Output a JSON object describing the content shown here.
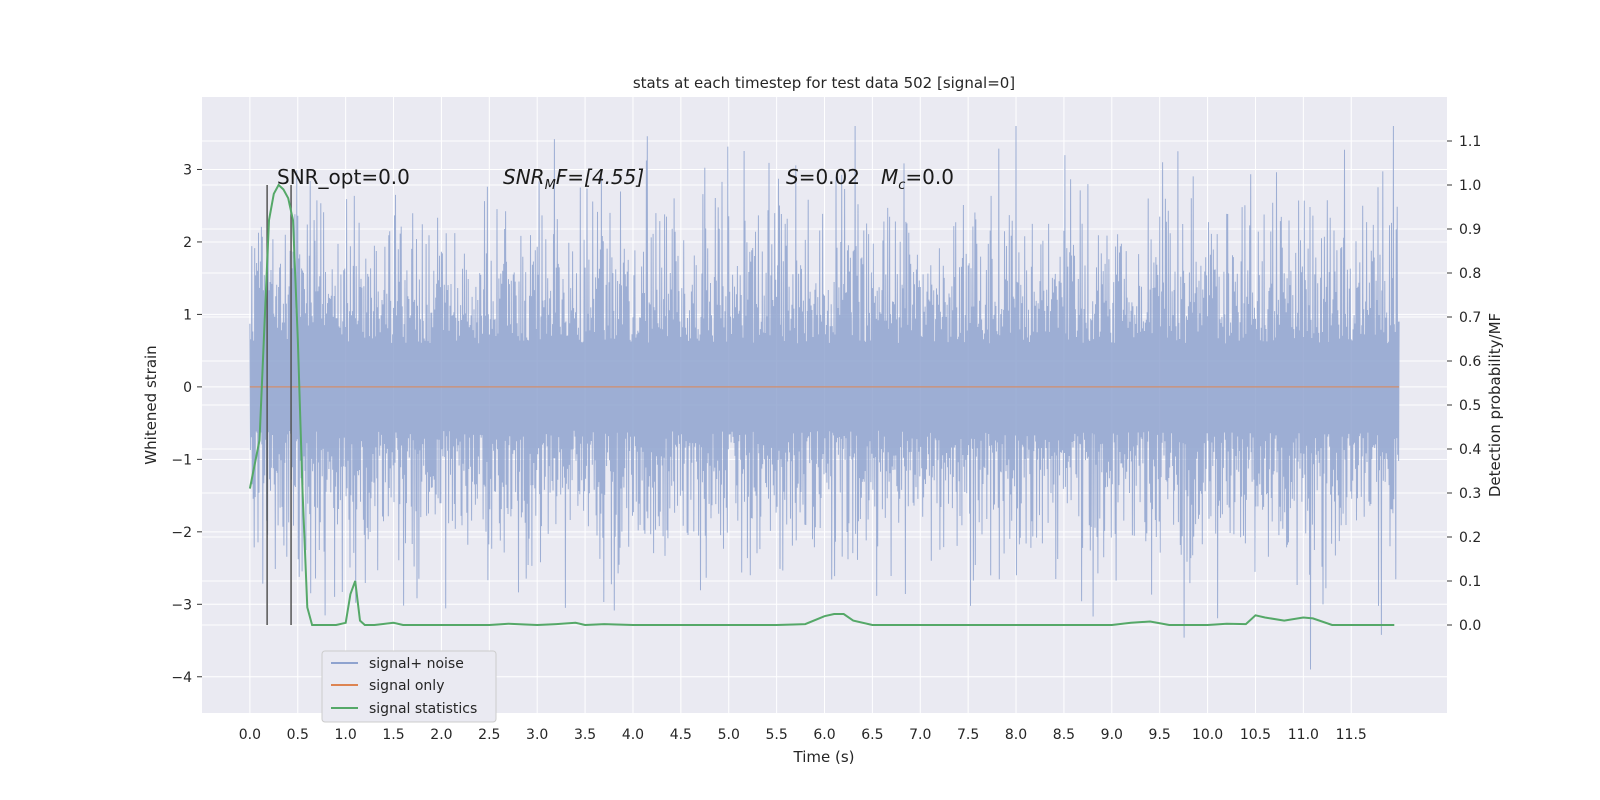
{
  "chart_data": {
    "type": "line",
    "title": "stats at each timestep for test data 502 [signal=0]",
    "xlabel": "Time (s)",
    "ylabel": "Whitened strain",
    "ylabel_right": "Detection probability/MF",
    "xlim": [
      -0.5,
      12.5
    ],
    "ylim": [
      -4.5,
      4.0
    ],
    "ylim_right": [
      -0.2,
      1.2
    ],
    "x_ticks": [
      0.0,
      0.5,
      1.0,
      1.5,
      2.0,
      2.5,
      3.0,
      3.5,
      4.0,
      4.5,
      5.0,
      5.5,
      6.0,
      6.5,
      7.0,
      7.5,
      8.0,
      8.5,
      9.0,
      9.5,
      10.0,
      10.5,
      11.0,
      11.5
    ],
    "x_tick_labels": [
      "0.0",
      "0.5",
      "1.0",
      "1.5",
      "2.0",
      "2.5",
      "3.0",
      "3.5",
      "4.0",
      "4.5",
      "5.0",
      "5.5",
      "6.0",
      "6.5",
      "7.0",
      "7.5",
      "8.0",
      "8.5",
      "9.0",
      "9.5",
      "10.0",
      "10.5",
      "11.0",
      "11.5"
    ],
    "y_ticks": [
      -4,
      -3,
      -2,
      -1,
      0,
      1,
      2,
      3
    ],
    "y_tick_labels": [
      "−4",
      "−3",
      "−2",
      "−1",
      "0",
      "1",
      "2",
      "3"
    ],
    "y_ticks_right": [
      0.0,
      0.1,
      0.2,
      0.3,
      0.4,
      0.5,
      0.6,
      0.7,
      0.8,
      0.9,
      1.0,
      1.1
    ],
    "y_tick_labels_right": [
      "0.0",
      "0.1",
      "0.2",
      "0.3",
      "0.4",
      "0.5",
      "0.6",
      "0.7",
      "0.8",
      "0.9",
      "1.0",
      "1.1"
    ],
    "grid": true,
    "legend_position": "lower-left",
    "annotations": {
      "snr_opt": "SNR_opt=0.0",
      "snr_mf": "SNR",
      "snr_mf_sub": "M",
      "snr_mf_rest": "F=[4.55]",
      "s_var": "S",
      "s_rest": "=0.02",
      "mc_var": "M",
      "mc_sub": "c",
      "mc_rest": "=0.0"
    },
    "series": [
      {
        "name": "signal+ noise",
        "color": "#8fa3cf",
        "axis": "left",
        "t_start": 0.0,
        "t_end": 12.0,
        "approx_bulk_range": [
          -1.6,
          1.6
        ],
        "approx_extremes": [
          -3.9,
          3.6
        ]
      },
      {
        "name": "signal only",
        "color": "#dd8452",
        "axis": "left",
        "x": [
          0.0,
          12.0
        ],
        "y": [
          0.0,
          0.0
        ]
      },
      {
        "name": "signal statistics",
        "color": "#55a868",
        "axis": "right",
        "x": [
          0.0,
          0.1,
          0.2,
          0.25,
          0.3,
          0.35,
          0.4,
          0.45,
          0.5,
          0.55,
          0.6,
          0.65,
          0.7,
          0.8,
          0.9,
          1.0,
          1.05,
          1.1,
          1.15,
          1.2,
          1.3,
          1.5,
          1.6,
          1.8,
          2.0,
          2.5,
          2.7,
          3.0,
          3.2,
          3.4,
          3.5,
          3.7,
          4.0,
          4.5,
          5.0,
          5.5,
          5.8,
          6.0,
          6.1,
          6.2,
          6.3,
          6.5,
          7.0,
          8.0,
          9.0,
          9.2,
          9.4,
          9.6,
          10.0,
          10.2,
          10.4,
          10.5,
          10.6,
          10.8,
          11.0,
          11.1,
          11.3,
          11.6,
          11.95
        ],
        "y": [
          0.31,
          0.42,
          0.92,
          0.98,
          1.0,
          0.99,
          0.97,
          0.92,
          0.65,
          0.3,
          0.04,
          0.0,
          0.0,
          0.0,
          0.0,
          0.005,
          0.07,
          0.1,
          0.01,
          0.0,
          0.0,
          0.005,
          0.0,
          0.0,
          0.0,
          0.0,
          0.003,
          0.0,
          0.002,
          0.005,
          0.0,
          0.002,
          0.0,
          0.0,
          0.0,
          0.0,
          0.002,
          0.02,
          0.025,
          0.025,
          0.01,
          0.0,
          0.0,
          0.0,
          0.0,
          0.005,
          0.008,
          0.0,
          0.0,
          0.003,
          0.002,
          0.022,
          0.017,
          0.01,
          0.017,
          0.015,
          0.0,
          0.0,
          0.0
        ]
      }
    ],
    "markers": {
      "color": "#555555",
      "x": [
        0.18,
        0.43
      ]
    }
  }
}
